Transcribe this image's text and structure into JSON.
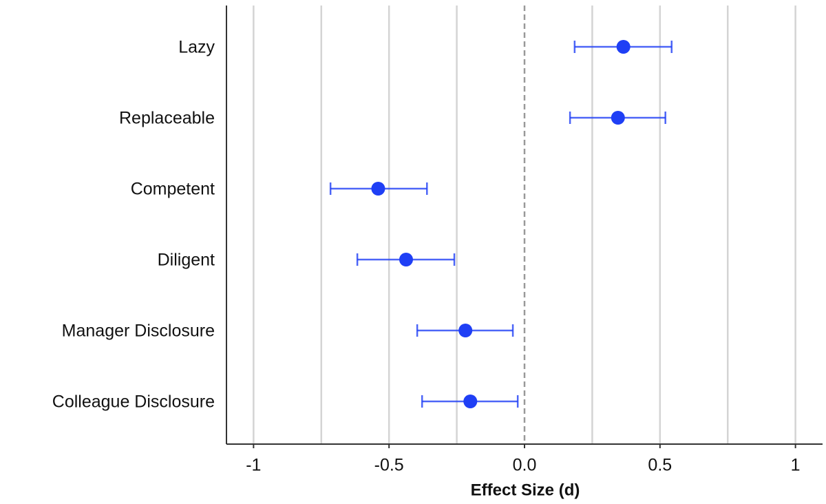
{
  "chart_data": {
    "type": "forest",
    "xlabel": "Effect Size (d)",
    "categories": [
      "Lazy",
      "Replaceable",
      "Competent",
      "Diligent",
      "Manager Disclosure",
      "Colleague Disclosure"
    ],
    "values": [
      0.365,
      0.345,
      -0.54,
      -0.437,
      -0.218,
      -0.2
    ],
    "lower": [
      0.185,
      0.168,
      -0.716,
      -0.617,
      -0.396,
      -0.378
    ],
    "upper": [
      0.543,
      0.52,
      -0.36,
      -0.259,
      -0.043,
      -0.025
    ],
    "color": "#1f3ff5",
    "xlim": [
      -1.1,
      1.1
    ],
    "xticks": [
      -1,
      -0.5,
      {
        "value": 0,
        "label": "0.0"
      },
      0.5,
      1
    ],
    "xgrid": [
      -1,
      -0.75,
      -0.5,
      -0.25,
      0.25,
      0.5,
      0.75,
      1
    ],
    "reference_line": 0
  }
}
